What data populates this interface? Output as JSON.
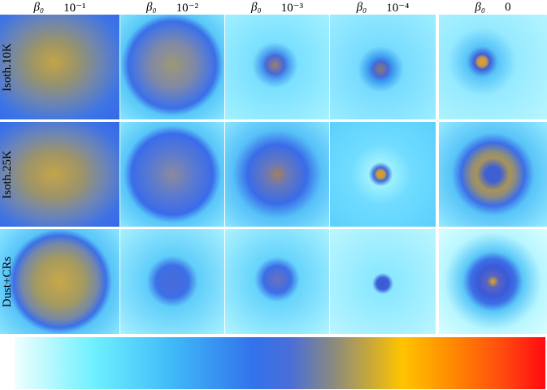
{
  "columns": [
    {
      "symbol": "β₀",
      "value": "10⁻¹"
    },
    {
      "symbol": "β₀",
      "value": "10⁻²"
    },
    {
      "symbol": "β₀",
      "value": "10⁻³"
    },
    {
      "symbol": "β₀",
      "value": "10⁻⁴"
    },
    {
      "symbol": "β₀",
      "value": "0"
    }
  ],
  "rows": [
    "Isoth.10K",
    "Isoth.25K",
    "Dust+CRs"
  ]
}
